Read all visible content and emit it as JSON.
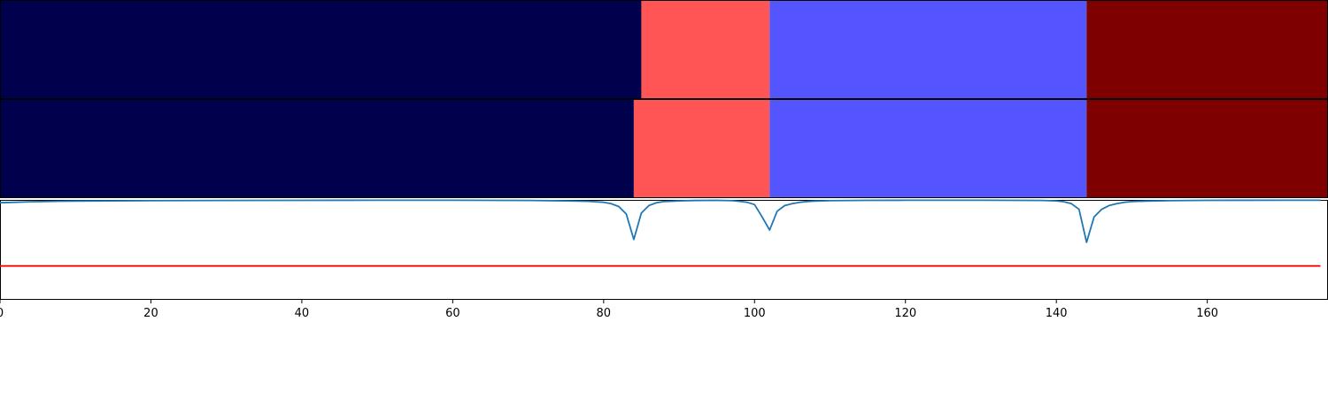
{
  "chart_data": [
    {
      "type": "heatmap",
      "title": "",
      "xlim": [
        0,
        176
      ],
      "rows": [
        {
          "segments": [
            {
              "start": 0,
              "end": 85,
              "color": "#00004c"
            },
            {
              "start": 85,
              "end": 102,
              "color": "#ff5555"
            },
            {
              "start": 102,
              "end": 144,
              "color": "#5555ff"
            },
            {
              "start": 144,
              "end": 176,
              "color": "#7f0000"
            }
          ]
        },
        {
          "segments": [
            {
              "start": 0,
              "end": 84,
              "color": "#00004c"
            },
            {
              "start": 84,
              "end": 102,
              "color": "#ff5555"
            },
            {
              "start": 102,
              "end": 144,
              "color": "#5555ff"
            },
            {
              "start": 144,
              "end": 176,
              "color": "#7f0000"
            }
          ]
        }
      ]
    },
    {
      "type": "line",
      "title": "",
      "xlabel": "",
      "ylabel": "",
      "xlim": [
        0,
        176
      ],
      "ylim": [
        -0.05,
        1.0
      ],
      "xticks": [
        0,
        20,
        40,
        60,
        80,
        100,
        120,
        140,
        160
      ],
      "xtick_labels": [
        "0",
        "20",
        "40",
        "60",
        "80",
        "100",
        "120",
        "140",
        "160"
      ],
      "series": [
        {
          "color": "#1f77b4",
          "x": [
            0,
            2,
            4,
            6,
            8,
            10,
            15,
            20,
            30,
            40,
            50,
            60,
            70,
            75,
            78,
            80,
            81,
            82,
            83,
            84,
            85,
            86,
            87,
            88,
            90,
            92,
            95,
            97,
            98,
            99,
            100,
            101,
            102,
            103,
            104,
            105,
            106,
            107,
            108,
            110,
            115,
            120,
            130,
            138,
            140,
            141,
            142,
            143,
            144,
            145,
            146,
            147,
            148,
            149,
            150,
            152,
            155,
            160,
            170,
            175
          ],
          "y": [
            0.97,
            0.975,
            0.98,
            0.983,
            0.986,
            0.988,
            0.99,
            0.992,
            0.994,
            0.995,
            0.996,
            0.996,
            0.994,
            0.99,
            0.985,
            0.975,
            0.96,
            0.93,
            0.85,
            0.58,
            0.86,
            0.94,
            0.97,
            0.982,
            0.99,
            0.993,
            0.995,
            0.992,
            0.985,
            0.975,
            0.95,
            0.82,
            0.68,
            0.88,
            0.94,
            0.96,
            0.975,
            0.983,
            0.988,
            0.992,
            0.995,
            0.996,
            0.996,
            0.994,
            0.99,
            0.98,
            0.96,
            0.9,
            0.55,
            0.82,
            0.9,
            0.94,
            0.96,
            0.975,
            0.982,
            0.988,
            0.992,
            0.995,
            0.996,
            0.996
          ]
        },
        {
          "color": "#ff0000",
          "x": [
            0,
            175
          ],
          "y": [
            0.3,
            0.3
          ]
        }
      ]
    }
  ]
}
